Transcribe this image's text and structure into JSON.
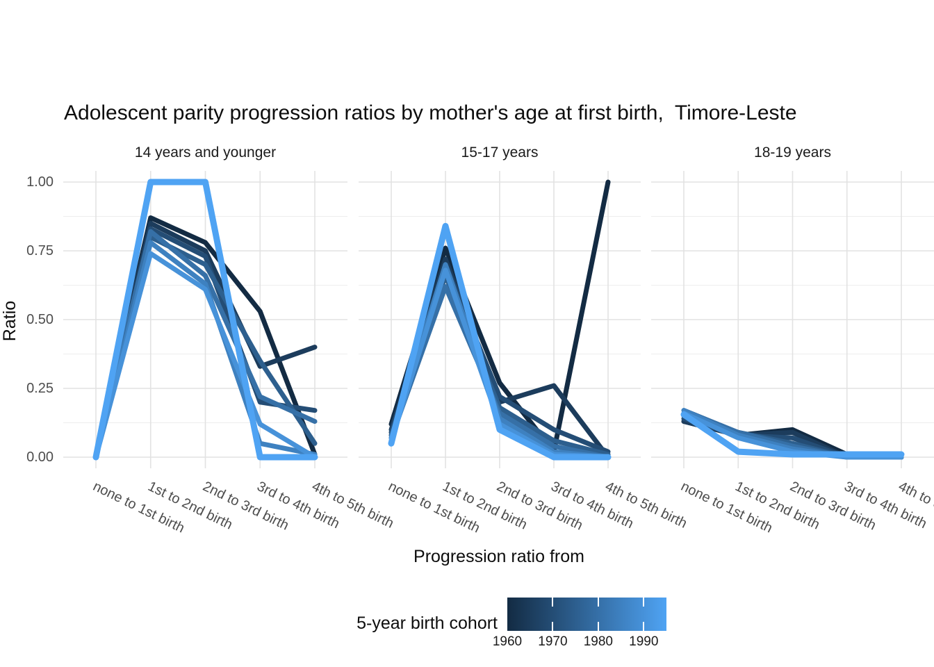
{
  "title": "Adolescent parity progression ratios by mother's age at first birth,  Timore-Leste",
  "y_axis": {
    "label": "Ratio",
    "ticks": [
      {
        "label": "1.00",
        "value": 1.0
      },
      {
        "label": "0.75",
        "value": 0.75
      },
      {
        "label": "0.50",
        "value": 0.5
      },
      {
        "label": "0.25",
        "value": 0.25
      },
      {
        "label": "0.00",
        "value": 0.0
      }
    ]
  },
  "x_axis": {
    "label": "Progression ratio from",
    "categories": [
      "none to 1st birth",
      "1st to 2nd birth",
      "2nd to 3rd birth",
      "3rd to 4th birth",
      "4th to 5th birth"
    ]
  },
  "legend": {
    "title": "5-year birth cohort",
    "gradient_low": "#132B43",
    "gradient_high": "#4FA3F3",
    "domain": [
      1960,
      1995
    ],
    "ticks": [
      {
        "label": "1960",
        "year": 1960
      },
      {
        "label": "1970",
        "year": 1970
      },
      {
        "label": "1980",
        "year": 1980
      },
      {
        "label": "1990",
        "year": 1990
      }
    ]
  },
  "colors": {
    "grid_major": "#E2E2E2",
    "grid_minor": "#EDEDED",
    "axis_text": "#4D4D4D",
    "title_text": "#0D0D0D",
    "background": "#FFFFFF"
  },
  "chart_data": {
    "type": "line",
    "x_categories": [
      "none to 1st birth",
      "1st to 2nd birth",
      "2nd to 3rd birth",
      "3rd to 4th birth",
      "4th to 5th birth"
    ],
    "ylim": [
      0,
      1
    ],
    "ytick_values": [
      0,
      0.25,
      0.5,
      0.75,
      1.0
    ],
    "yminor_values": [
      0.125,
      0.375,
      0.625,
      0.875
    ],
    "grid": true,
    "legend_position": "bottom",
    "facets": [
      {
        "label": "14 years and younger",
        "series": [
          {
            "cohort": 1960,
            "color": "#132B43",
            "values": [
              0.01,
              0.87,
              0.78,
              0.53,
              0.01
            ]
          },
          {
            "cohort": 1965,
            "color": "#1C3C5C",
            "values": [
              0.01,
              0.85,
              0.75,
              0.33,
              0.4
            ]
          },
          {
            "cohort": 1970,
            "color": "#244D75",
            "values": [
              0.01,
              0.83,
              0.73,
              0.2,
              0.17
            ]
          },
          {
            "cohort": 1975,
            "color": "#2D5F8E",
            "values": [
              0.01,
              0.8,
              0.7,
              0.35,
              0.05
            ]
          },
          {
            "cohort": 1980,
            "color": "#3670A7",
            "values": [
              0.01,
              0.82,
              0.66,
              0.22,
              0.13
            ]
          },
          {
            "cohort": 1985,
            "color": "#3E81C0",
            "values": [
              0.0,
              0.78,
              0.63,
              0.05,
              0.01
            ]
          },
          {
            "cohort": 1990,
            "color": "#4792D9",
            "values": [
              0.0,
              0.74,
              0.61,
              0.12,
              0.0
            ]
          },
          {
            "cohort": 1995,
            "color": "#4FA3F3",
            "values": [
              0.0,
              1.0,
              1.0,
              0.0,
              0.0
            ]
          }
        ]
      },
      {
        "label": "15-17 years",
        "series": [
          {
            "cohort": 1960,
            "color": "#132B43",
            "values": [
              0.12,
              0.76,
              0.27,
              0.02,
              1.0
            ]
          },
          {
            "cohort": 1965,
            "color": "#1C3C5C",
            "values": [
              0.1,
              0.72,
              0.2,
              0.26,
              0.0
            ]
          },
          {
            "cohort": 1970,
            "color": "#244D75",
            "values": [
              0.09,
              0.7,
              0.22,
              0.1,
              0.02
            ]
          },
          {
            "cohort": 1975,
            "color": "#2D5F8E",
            "values": [
              0.08,
              0.66,
              0.18,
              0.06,
              0.01
            ]
          },
          {
            "cohort": 1980,
            "color": "#3670A7",
            "values": [
              0.07,
              0.62,
              0.16,
              0.04,
              0.0
            ]
          },
          {
            "cohort": 1985,
            "color": "#3E81C0",
            "values": [
              0.07,
              0.7,
              0.14,
              0.02,
              0.0
            ]
          },
          {
            "cohort": 1990,
            "color": "#4792D9",
            "values": [
              0.06,
              0.68,
              0.12,
              0.01,
              0.0
            ]
          },
          {
            "cohort": 1995,
            "color": "#4FA3F3",
            "values": [
              0.05,
              0.84,
              0.1,
              0.0,
              0.0
            ]
          }
        ]
      },
      {
        "label": "18-19 years",
        "series": [
          {
            "cohort": 1960,
            "color": "#132B43",
            "values": [
              0.13,
              0.08,
              0.1,
              0.01,
              0.0
            ]
          },
          {
            "cohort": 1965,
            "color": "#1C3C5C",
            "values": [
              0.13,
              0.08,
              0.09,
              0.0,
              0.0
            ]
          },
          {
            "cohort": 1970,
            "color": "#244D75",
            "values": [
              0.14,
              0.08,
              0.07,
              0.0,
              0.0
            ]
          },
          {
            "cohort": 1975,
            "color": "#2D5F8E",
            "values": [
              0.15,
              0.09,
              0.05,
              0.0,
              0.0
            ]
          },
          {
            "cohort": 1980,
            "color": "#3670A7",
            "values": [
              0.17,
              0.09,
              0.04,
              0.0,
              0.0
            ]
          },
          {
            "cohort": 1985,
            "color": "#3E81C0",
            "values": [
              0.17,
              0.08,
              0.03,
              0.0,
              0.0
            ]
          },
          {
            "cohort": 1990,
            "color": "#4792D9",
            "values": [
              0.16,
              0.07,
              0.02,
              0.0,
              0.0
            ]
          },
          {
            "cohort": 1995,
            "color": "#4FA3F3",
            "values": [
              0.155,
              0.02,
              0.01,
              0.01,
              0.01
            ]
          }
        ]
      }
    ]
  }
}
